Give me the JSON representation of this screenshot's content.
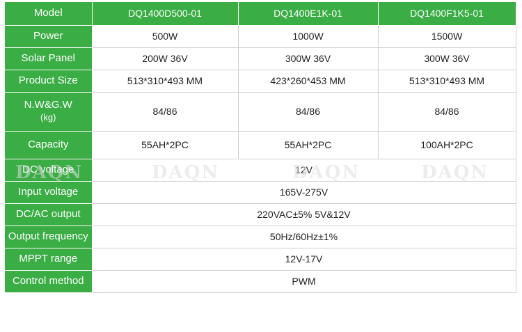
{
  "watermark": "DAQN",
  "table": {
    "header_label": "Model",
    "models": [
      "DQ1400D500-01",
      "DQ1400E1K-01",
      "DQ1400F1K5-01"
    ],
    "rows": [
      {
        "label": "Power",
        "values": [
          "500W",
          "1000W",
          "1500W"
        ]
      },
      {
        "label": "Solar Panel",
        "values": [
          "200W 36V",
          "300W 36V",
          "300W 36V"
        ]
      },
      {
        "label": "Product Size",
        "values": [
          "513*310*493 MM",
          "423*260*453 MM",
          "513*310*493 MM"
        ]
      },
      {
        "label_lines": [
          "N.W&G.W",
          "(kg)"
        ],
        "values": [
          "84/86",
          "84/86",
          "84/86"
        ]
      },
      {
        "label": "Capacity",
        "values": [
          "55AH*2PC",
          "55AH*2PC",
          "100AH*2PC"
        ]
      }
    ],
    "shared_rows": [
      {
        "label": "DC voltage",
        "value": "12V"
      },
      {
        "label": "Input voltage",
        "value": "165V-275V"
      },
      {
        "label": "DC/AC output",
        "value": "220VAC±5% 5V&12V"
      },
      {
        "label": "Output frequency",
        "value": "50Hz/60Hz±1%"
      },
      {
        "label": "MPPT range",
        "value": "12V-17V"
      },
      {
        "label": "Control method",
        "value": "PWM"
      }
    ]
  }
}
